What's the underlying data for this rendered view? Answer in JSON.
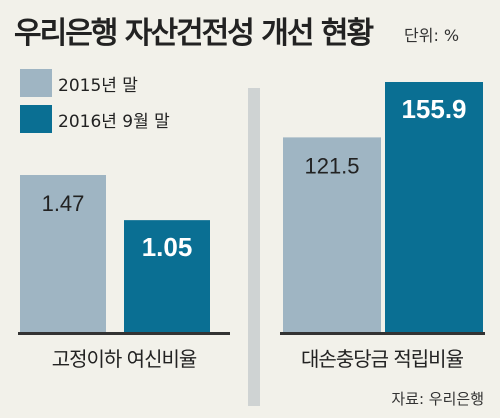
{
  "title": "우리은행 자산건전성 개선 현황",
  "unit": "단위: %",
  "source": "자료: 우리은행",
  "colors": {
    "series_2015": "#9fb5c3",
    "series_2016": "#0a6f93",
    "background": "#f2f1ea",
    "value_on_dark": "#ffffff",
    "value_on_light": "#222222"
  },
  "chart_data": {
    "type": "bar",
    "title": "우리은행 자산건전성 개선 현황",
    "unit": "%",
    "categories": [
      "고정이하 여신비율",
      "대손충당금 적립비율"
    ],
    "series": [
      {
        "name": "2015년 말",
        "values": [
          1.47,
          121.5
        ]
      },
      {
        "name": "2016년 9월 말",
        "values": [
          1.05,
          155.9
        ]
      }
    ],
    "value_labels": [
      [
        "1.47",
        "121.5"
      ],
      [
        "1.05",
        "155.9"
      ]
    ],
    "legend": "top-left",
    "grid": false
  }
}
